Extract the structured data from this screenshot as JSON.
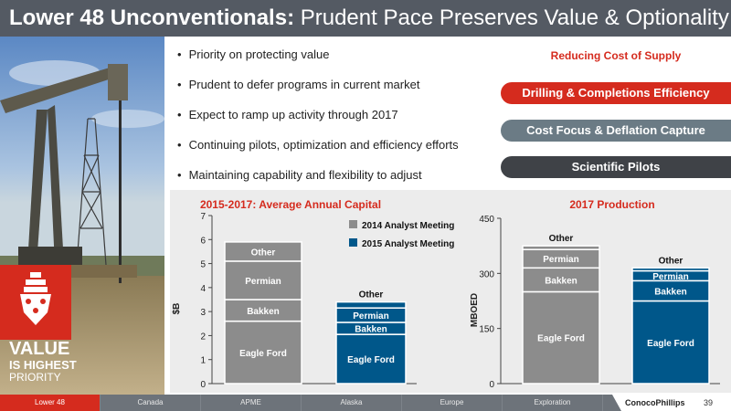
{
  "header": {
    "title_bold": "Lower 48 Unconventionals:",
    "title_rest": " Prudent Pace Preserves Value & Optionality"
  },
  "badge": {
    "line1": "VALUE",
    "line2": "IS HIGHEST",
    "line3": "PRIORITY"
  },
  "bullets": [
    "Priority on protecting value",
    "Prudent to defer programs in current market",
    "Expect to ramp up activity through 2017",
    "Continuing pilots, optimization and efficiency efforts",
    "Maintaining capability and flexibility to adjust"
  ],
  "cost": {
    "heading": "Reducing Cost of Supply",
    "items": [
      "Drilling & Completions Efficiency",
      "Cost Focus & Deflation Capture",
      "Scientific Pilots"
    ]
  },
  "colors": {
    "accent": "#d52b1e",
    "gray_bar": "#8c8c8c",
    "blue_bar": "#00578a",
    "title_bar": "#545a63"
  },
  "chart_data": [
    {
      "type": "bar",
      "stacked": true,
      "title": "2015-2017: Average Annual Capital",
      "ylabel": "$B",
      "ylim": [
        0,
        7
      ],
      "yticks": [
        0,
        1,
        2,
        3,
        4,
        5,
        6,
        7
      ],
      "legend": [
        "2014 Analyst Meeting",
        "2015 Analyst Meeting"
      ],
      "bars": [
        {
          "series": "2014 Analyst Meeting",
          "segments": [
            {
              "name": "Eagle Ford",
              "value": 2.6
            },
            {
              "name": "Bakken",
              "value": 0.9
            },
            {
              "name": "Permian",
              "value": 1.6
            },
            {
              "name": "Other",
              "value": 0.8
            }
          ]
        },
        {
          "series": "2015 Analyst Meeting",
          "segments": [
            {
              "name": "Eagle Ford",
              "value": 2.05
            },
            {
              "name": "Bakken",
              "value": 0.5
            },
            {
              "name": "Permian",
              "value": 0.6
            },
            {
              "name": "Other",
              "value": 0.25
            }
          ]
        }
      ]
    },
    {
      "type": "bar",
      "stacked": true,
      "title": "2017 Production",
      "ylabel": "MBOED",
      "ylim": [
        0,
        450
      ],
      "yticks": [
        0,
        150,
        300,
        450
      ],
      "bars": [
        {
          "series": "2014 Analyst Meeting",
          "segments": [
            {
              "name": "Eagle Ford",
              "value": 250
            },
            {
              "name": "Bakken",
              "value": 65
            },
            {
              "name": "Permian",
              "value": 50
            },
            {
              "name": "Other",
              "value": 10
            }
          ]
        },
        {
          "series": "2015 Analyst Meeting",
          "segments": [
            {
              "name": "Eagle Ford",
              "value": 225
            },
            {
              "name": "Bakken",
              "value": 55
            },
            {
              "name": "Permian",
              "value": 27
            },
            {
              "name": "Other",
              "value": 8
            }
          ]
        }
      ]
    }
  ],
  "footer": {
    "tabs": [
      "Lower 48",
      "Canada",
      "APME",
      "Alaska",
      "Europe",
      "Exploration"
    ],
    "logo": "ConocoPhillips",
    "page": "39"
  }
}
